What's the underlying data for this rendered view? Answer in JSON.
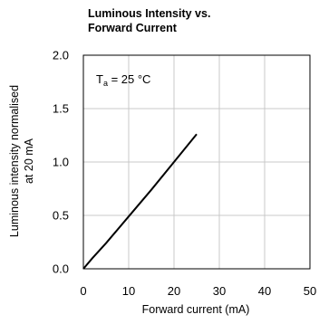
{
  "chart_data": {
    "type": "line",
    "title_lines": [
      "Luminous Intensity vs.",
      "Forward Current"
    ],
    "xlabel": "Forward current (mA)",
    "ylabel_lines": [
      "Luminous intensity normalised",
      "at 20 mA"
    ],
    "xlim": [
      0,
      50
    ],
    "ylim": [
      0,
      2.0
    ],
    "x_ticks": [
      "0",
      "10",
      "20",
      "30",
      "40",
      "50"
    ],
    "y_ticks": [
      "0.0",
      "0.5",
      "1.0",
      "1.5",
      "2.0"
    ],
    "grid": true,
    "annotation": {
      "symbol": "T",
      "subscript": "a",
      "text": " = 25 °C"
    },
    "series": [
      {
        "x": [
          0,
          2,
          5,
          10,
          15,
          20,
          25
        ],
        "y": [
          0,
          0.1,
          0.24,
          0.49,
          0.74,
          1.0,
          1.26
        ],
        "color": "#000000"
      }
    ]
  }
}
